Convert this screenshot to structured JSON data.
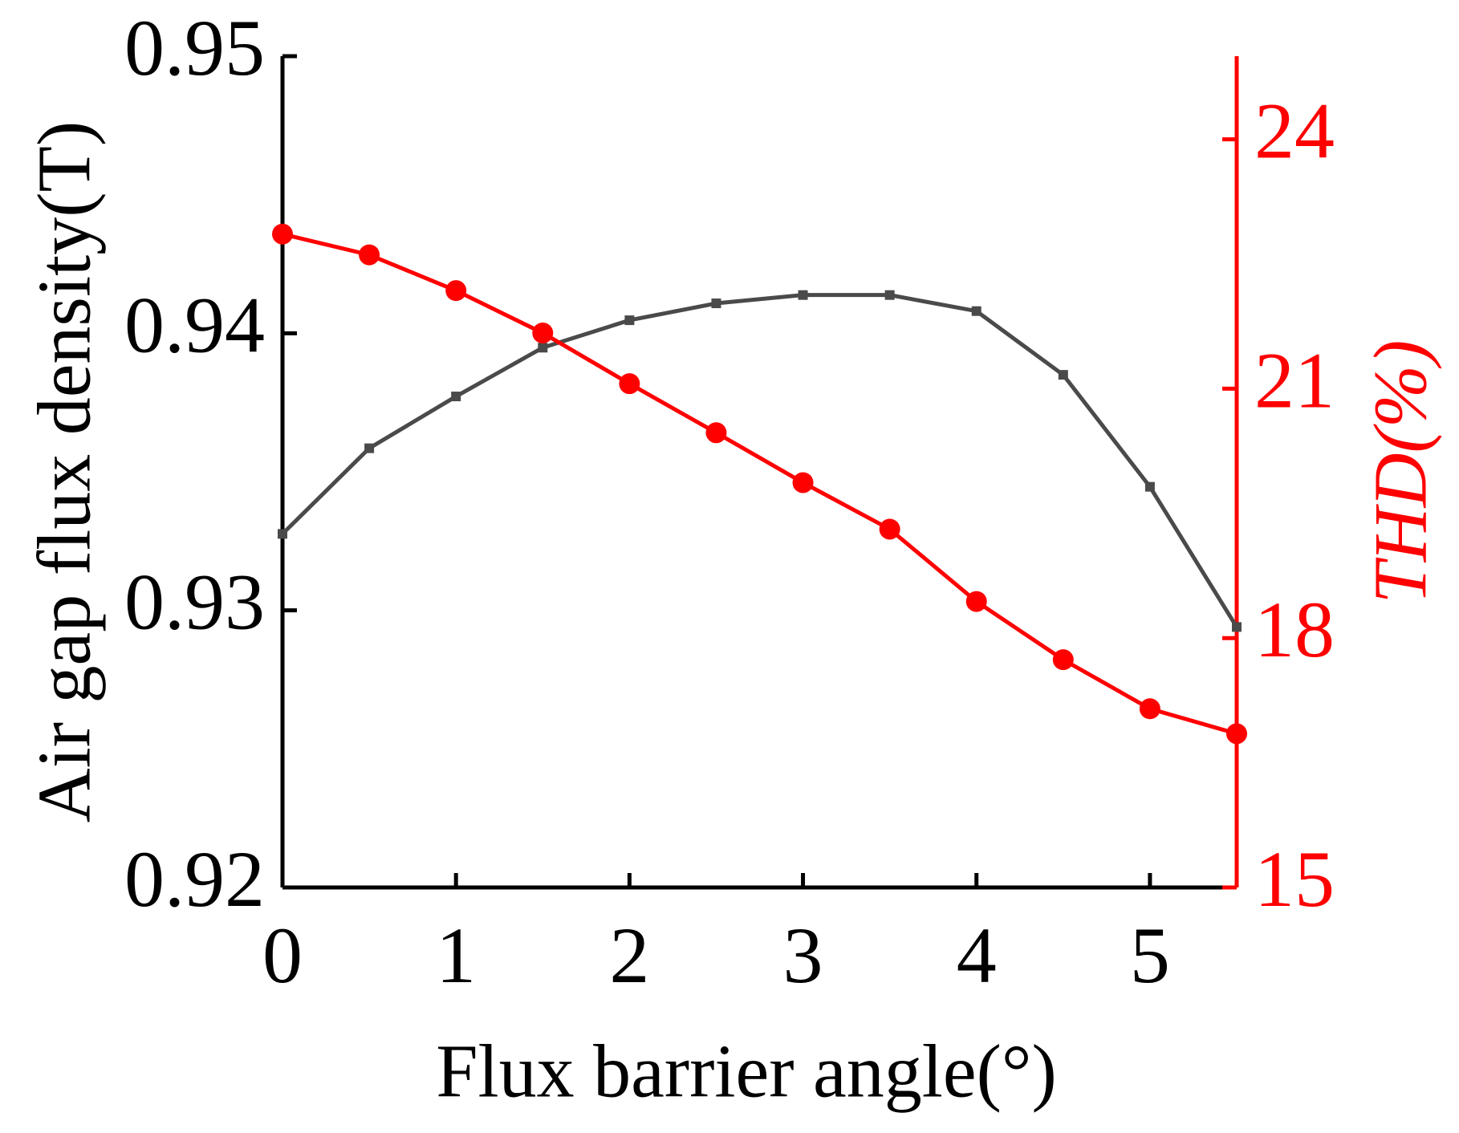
{
  "chart_data": {
    "type": "line",
    "x_label": "Flux barrier angle(°)",
    "y_label": "Air gap flux density(T)",
    "y2_label": "THD(%)",
    "x": [
      0,
      0.5,
      1,
      1.5,
      2,
      2.5,
      3,
      3.5,
      4,
      4.5,
      5,
      5.5
    ],
    "xlim": [
      0,
      5.5
    ],
    "xticks": [
      0,
      1,
      2,
      3,
      4,
      5
    ],
    "ylim": [
      0.92,
      0.95
    ],
    "yticks": [
      0.92,
      0.93,
      0.94,
      0.95
    ],
    "y2lim": [
      15,
      25
    ],
    "y2ticks": [
      15,
      18,
      21,
      24
    ],
    "series": [
      {
        "name": "Air gap flux density",
        "color": "#4a4a4a",
        "marker": "square",
        "values": [
          0.93276,
          0.93585,
          0.93772,
          0.93948,
          0.94047,
          0.94108,
          0.94138,
          0.94138,
          0.9408,
          0.9385,
          0.93446,
          0.9294
        ]
      },
      {
        "name": "THD",
        "color": "#ff0000",
        "marker": "circle",
        "axis": "y2",
        "values": [
          22.86,
          22.61,
          22.18,
          21.67,
          21.06,
          20.47,
          19.87,
          19.31,
          18.44,
          17.74,
          17.15,
          16.85
        ]
      }
    ]
  }
}
